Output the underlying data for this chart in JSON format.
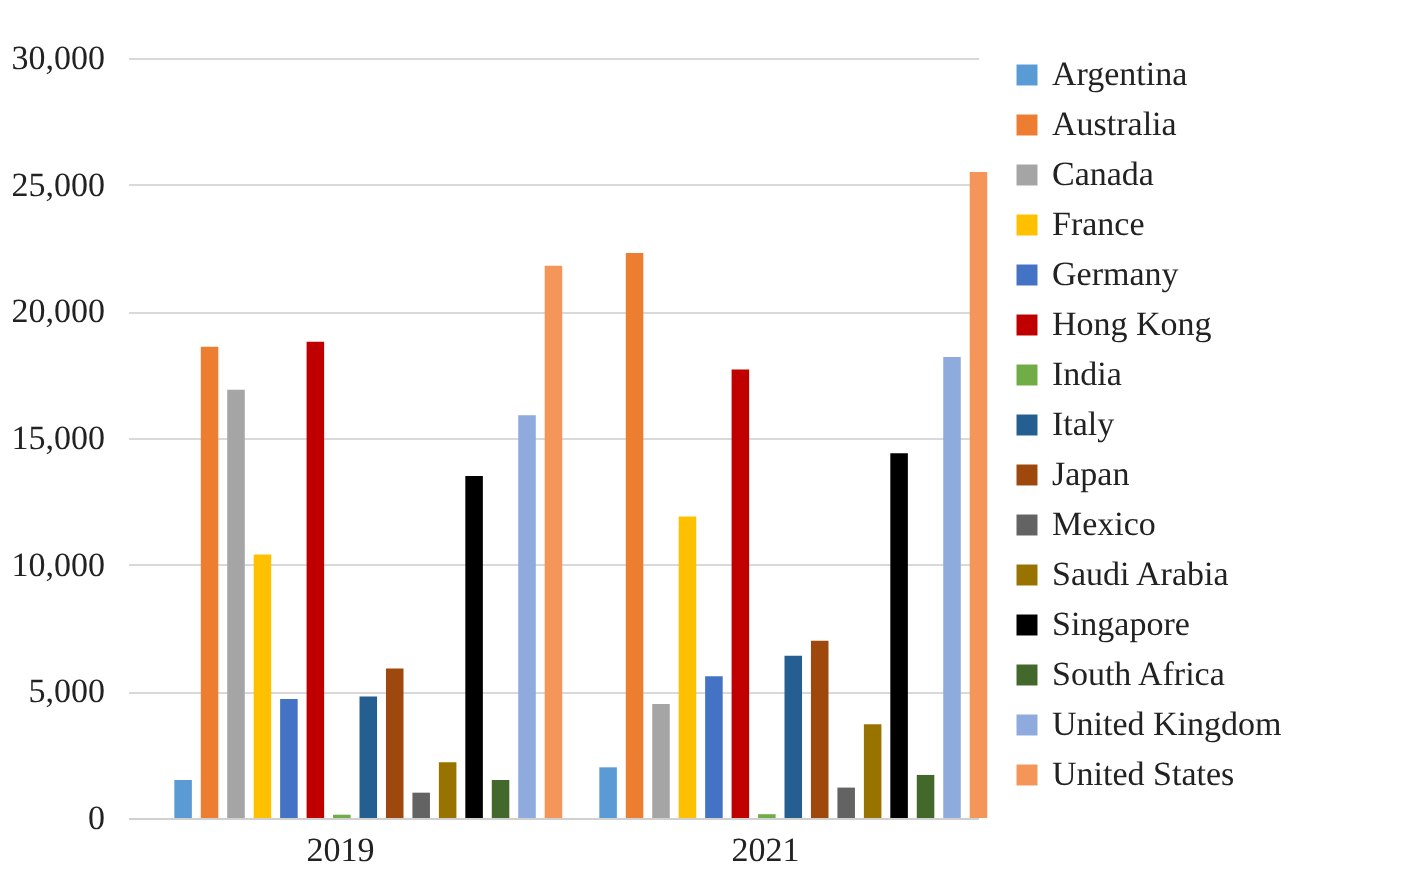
{
  "chart_data": {
    "type": "bar",
    "categories": [
      "2019",
      "2021"
    ],
    "series": [
      {
        "name": "Argentina",
        "color": "#5b9bd5",
        "values": [
          1500,
          2000
        ]
      },
      {
        "name": "Australia",
        "color": "#ed7d31",
        "values": [
          18600,
          22300
        ]
      },
      {
        "name": "Canada",
        "color": "#a5a5a5",
        "values": [
          16900,
          4500
        ]
      },
      {
        "name": "France",
        "color": "#ffc000",
        "values": [
          10400,
          11900
        ]
      },
      {
        "name": "Germany",
        "color": "#4472c4",
        "values": [
          4700,
          5600
        ]
      },
      {
        "name": "Hong Kong",
        "color": "#c00000",
        "values": [
          18800,
          17700
        ]
      },
      {
        "name": "India",
        "color": "#70ad47",
        "values": [
          130,
          150
        ]
      },
      {
        "name": "Italy",
        "color": "#255e91",
        "values": [
          4800,
          6400
        ]
      },
      {
        "name": "Japan",
        "color": "#9e480e",
        "values": [
          5900,
          7000
        ]
      },
      {
        "name": "Mexico",
        "color": "#636363",
        "values": [
          1000,
          1200
        ]
      },
      {
        "name": "Saudi Arabia",
        "color": "#997300",
        "values": [
          2200,
          3700
        ]
      },
      {
        "name": "Singapore",
        "color": "#000000",
        "values": [
          13500,
          14400
        ]
      },
      {
        "name": "South Africa",
        "color": "#43682b",
        "values": [
          1500,
          1700
        ]
      },
      {
        "name": "United Kingdom",
        "color": "#8faadc",
        "values": [
          15900,
          18200
        ]
      },
      {
        "name": "United States",
        "color": "#f4965a",
        "values": [
          21800,
          25500
        ]
      }
    ],
    "ylim": [
      0,
      30000
    ],
    "yticks": [
      0,
      {
        "value": 5000,
        "label": "5,000"
      },
      {
        "value": 10000,
        "label": "10,000"
      },
      {
        "value": 15000,
        "label": "15,000"
      },
      {
        "value": 20000,
        "label": "20,000"
      },
      {
        "value": 25000,
        "label": "25,000"
      },
      {
        "value": 30000,
        "label": "30,000"
      }
    ],
    "grid": "y",
    "legend": "right"
  }
}
